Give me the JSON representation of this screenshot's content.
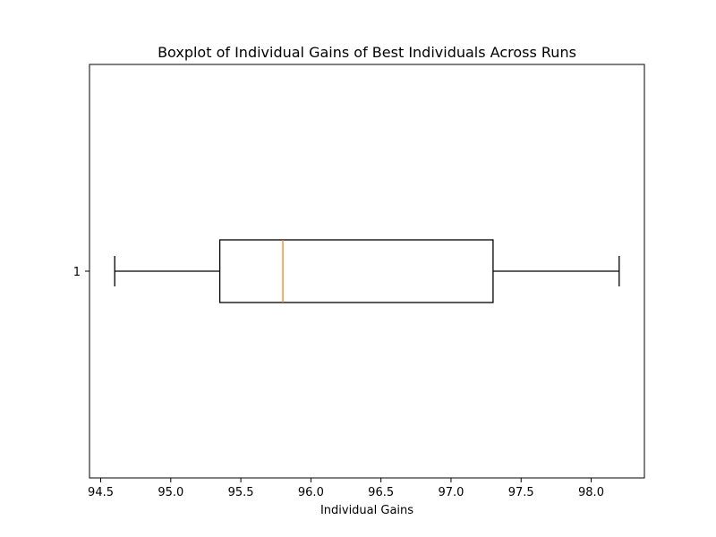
{
  "chart_data": {
    "type": "boxplot",
    "orientation": "horizontal",
    "title": "Boxplot of Individual Gains of Best Individuals Across Runs",
    "xlabel": "Individual Gains",
    "ylabel": "",
    "categories": [
      "1"
    ],
    "boxes": [
      {
        "category": "1",
        "whisker_low": 94.6,
        "q1": 95.35,
        "median": 95.8,
        "q3": 97.3,
        "whisker_high": 98.2
      }
    ],
    "xlim": [
      94.42,
      98.38
    ],
    "xticks": [
      94.5,
      95.0,
      95.5,
      96.0,
      96.5,
      97.0,
      97.5,
      98.0
    ],
    "xtick_labels": [
      "94.5",
      "95.0",
      "95.5",
      "96.0",
      "96.5",
      "97.0",
      "97.5",
      "98.0"
    ],
    "grid": false,
    "colors": {
      "box": "#000000",
      "median": "#ff7f0e",
      "whisker": "#000000"
    }
  }
}
